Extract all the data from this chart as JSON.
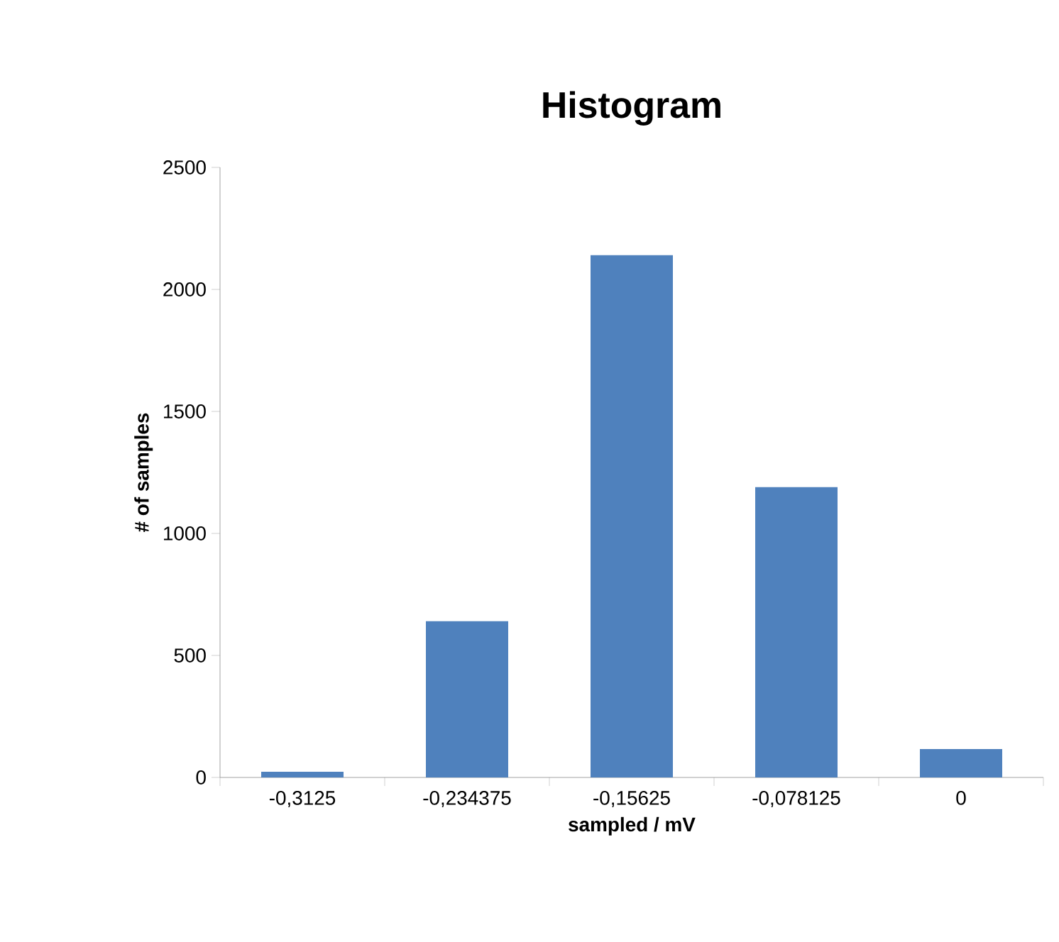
{
  "chart_data": {
    "type": "bar",
    "title": "Histogram",
    "xlabel": "sampled / mV",
    "ylabel": "# of samples",
    "categories": [
      "-0,3125",
      "-0,234375",
      "-0,15625",
      "-0,078125",
      "0"
    ],
    "values": [
      23,
      640,
      2140,
      1190,
      116
    ],
    "color": "#4f81bd",
    "ylim": [
      0,
      2500
    ],
    "yticks": [
      0,
      500,
      1000,
      1500,
      2000,
      2500
    ],
    "grid": false
  }
}
